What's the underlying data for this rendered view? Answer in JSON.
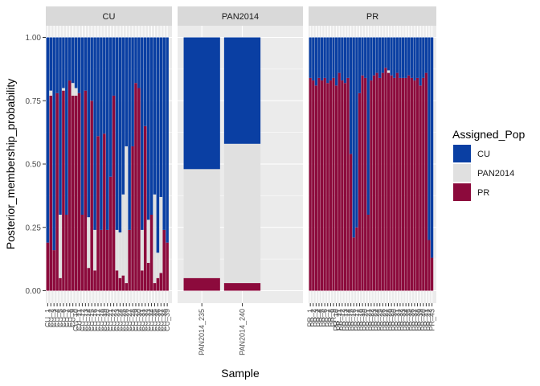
{
  "chart_data": {
    "type": "bar",
    "stacked": true,
    "xlabel": "Sample",
    "ylabel": "Posterior_membership_probability",
    "ylim": [
      0,
      1
    ],
    "yticks": [
      "0.00",
      "0.25",
      "0.50",
      "0.75",
      "1.00"
    ],
    "legend": {
      "title": "Assigned_Pop",
      "placement": "right",
      "entries": [
        {
          "label": "CU",
          "color": "#0a3fa3"
        },
        {
          "label": "PAN2014",
          "color": "#e0e0e0"
        },
        {
          "label": "PR",
          "color": "#8c0a3c"
        }
      ]
    },
    "series_order": [
      "PR",
      "PAN2014",
      "CU"
    ],
    "panels": [
      {
        "name": "CU",
        "samples": [
          {
            "id": "s1",
            "PR": 0.19,
            "PAN2014": 0.0,
            "CU": 0.81
          },
          {
            "id": "s2",
            "PR": 0.77,
            "PAN2014": 0.02,
            "CU": 0.21
          },
          {
            "id": "s3",
            "PR": 0.16,
            "PAN2014": 0.0,
            "CU": 0.84
          },
          {
            "id": "s4",
            "PR": 0.78,
            "PAN2014": 0.0,
            "CU": 0.22
          },
          {
            "id": "s5",
            "PR": 0.05,
            "PAN2014": 0.25,
            "CU": 0.7
          },
          {
            "id": "s6",
            "PR": 0.79,
            "PAN2014": 0.01,
            "CU": 0.2
          },
          {
            "id": "s7",
            "PR": 0.3,
            "PAN2014": 0.0,
            "CU": 0.7
          },
          {
            "id": "s8",
            "PR": 0.83,
            "PAN2014": 0.0,
            "CU": 0.17
          },
          {
            "id": "s9",
            "PR": 0.77,
            "PAN2014": 0.05,
            "CU": 0.18
          },
          {
            "id": "s10",
            "PR": 0.77,
            "PAN2014": 0.03,
            "CU": 0.2
          },
          {
            "id": "s11",
            "PR": 0.78,
            "PAN2014": 0.0,
            "CU": 0.22
          },
          {
            "id": "s12",
            "PR": 0.3,
            "PAN2014": 0.0,
            "CU": 0.7
          },
          {
            "id": "s13",
            "PR": 0.79,
            "PAN2014": 0.0,
            "CU": 0.21
          },
          {
            "id": "s14",
            "PR": 0.09,
            "PAN2014": 0.2,
            "CU": 0.71
          },
          {
            "id": "s15",
            "PR": 0.75,
            "PAN2014": 0.0,
            "CU": 0.25
          },
          {
            "id": "s16",
            "PR": 0.08,
            "PAN2014": 0.16,
            "CU": 0.76
          },
          {
            "id": "s17",
            "PR": 0.61,
            "PAN2014": 0.0,
            "CU": 0.39
          },
          {
            "id": "s18",
            "PR": 0.24,
            "PAN2014": 0.0,
            "CU": 0.76
          },
          {
            "id": "s19",
            "PR": 0.62,
            "PAN2014": 0.0,
            "CU": 0.38
          },
          {
            "id": "s20",
            "PR": 0.24,
            "PAN2014": 0.0,
            "CU": 0.76
          },
          {
            "id": "s21",
            "PR": 0.45,
            "PAN2014": 0.0,
            "CU": 0.55
          },
          {
            "id": "s22",
            "PR": 0.77,
            "PAN2014": 0.0,
            "CU": 0.23
          },
          {
            "id": "s23",
            "PR": 0.08,
            "PAN2014": 0.16,
            "CU": 0.76
          },
          {
            "id": "s24",
            "PR": 0.05,
            "PAN2014": 0.18,
            "CU": 0.77
          },
          {
            "id": "s25",
            "PR": 0.06,
            "PAN2014": 0.32,
            "CU": 0.62
          },
          {
            "id": "s26",
            "PR": 0.03,
            "PAN2014": 0.54,
            "CU": 0.43
          },
          {
            "id": "s27",
            "PR": 0.24,
            "PAN2014": 0.0,
            "CU": 0.76
          },
          {
            "id": "s28",
            "PR": 0.57,
            "PAN2014": 0.0,
            "CU": 0.43
          },
          {
            "id": "s29",
            "PR": 0.82,
            "PAN2014": 0.0,
            "CU": 0.18
          },
          {
            "id": "s30",
            "PR": 0.8,
            "PAN2014": 0.0,
            "CU": 0.2
          },
          {
            "id": "s31",
            "PR": 0.08,
            "PAN2014": 0.16,
            "CU": 0.76
          },
          {
            "id": "s32",
            "PR": 0.65,
            "PAN2014": 0.0,
            "CU": 0.35
          },
          {
            "id": "s33",
            "PR": 0.11,
            "PAN2014": 0.17,
            "CU": 0.72
          },
          {
            "id": "s34",
            "PR": 0.3,
            "PAN2014": 0.0,
            "CU": 0.7
          },
          {
            "id": "s35",
            "PR": 0.03,
            "PAN2014": 0.35,
            "CU": 0.62
          },
          {
            "id": "s36",
            "PR": 0.05,
            "PAN2014": 0.1,
            "CU": 0.85
          },
          {
            "id": "s37",
            "PR": 0.07,
            "PAN2014": 0.3,
            "CU": 0.63
          },
          {
            "id": "s38",
            "PR": 0.24,
            "PAN2014": 0.0,
            "CU": 0.76
          },
          {
            "id": "s39",
            "PR": 0.19,
            "PAN2014": 0.0,
            "CU": 0.81
          }
        ],
        "tick_labels": [
          "CU_1",
          "CU_2",
          "CU_3",
          "CU_4",
          "CU_5",
          "CU_6",
          "CU_7",
          "CU_8",
          "CU_9",
          "CU_10",
          "CU_11",
          "CU_12",
          "CU_13",
          "CU_14",
          "CU_15",
          "CU_16",
          "CU_17",
          "CU_18",
          "CU_19",
          "CU_20",
          "CU_21",
          "CU_22",
          "CU_23",
          "CU_24",
          "CU_25",
          "CU_26",
          "CU_27",
          "CU_28",
          "CU_29",
          "CU_30",
          "CU_31",
          "CU_32",
          "CU_33",
          "CU_34",
          "CU_35",
          "CU_36",
          "CU_37",
          "CU_38",
          "CU_39"
        ]
      },
      {
        "name": "PAN2014",
        "samples": [
          {
            "id": "PAN2014_235",
            "PR": 0.05,
            "PAN2014": 0.43,
            "CU": 0.52
          },
          {
            "id": "PAN2014_240",
            "PR": 0.03,
            "PAN2014": 0.55,
            "CU": 0.42
          }
        ],
        "tick_labels": [
          "PAN2014_235",
          "PAN2014_240"
        ]
      },
      {
        "name": "PR",
        "samples": [
          {
            "id": "r1",
            "PR": 0.84,
            "PAN2014": 0.0,
            "CU": 0.16
          },
          {
            "id": "r2",
            "PR": 0.83,
            "PAN2014": 0.0,
            "CU": 0.17
          },
          {
            "id": "r3",
            "PR": 0.81,
            "PAN2014": 0.0,
            "CU": 0.19
          },
          {
            "id": "r4",
            "PR": 0.84,
            "PAN2014": 0.0,
            "CU": 0.16
          },
          {
            "id": "r5",
            "PR": 0.83,
            "PAN2014": 0.0,
            "CU": 0.17
          },
          {
            "id": "r6",
            "PR": 0.84,
            "PAN2014": 0.0,
            "CU": 0.16
          },
          {
            "id": "r7",
            "PR": 0.82,
            "PAN2014": 0.0,
            "CU": 0.18
          },
          {
            "id": "r8",
            "PR": 0.83,
            "PAN2014": 0.0,
            "CU": 0.17
          },
          {
            "id": "r9",
            "PR": 0.84,
            "PAN2014": 0.0,
            "CU": 0.16
          },
          {
            "id": "r10",
            "PR": 0.81,
            "PAN2014": 0.0,
            "CU": 0.19
          },
          {
            "id": "r11",
            "PR": 0.86,
            "PAN2014": 0.0,
            "CU": 0.14
          },
          {
            "id": "r12",
            "PR": 0.83,
            "PAN2014": 0.0,
            "CU": 0.17
          },
          {
            "id": "r13",
            "PR": 0.82,
            "PAN2014": 0.0,
            "CU": 0.18
          },
          {
            "id": "r14",
            "PR": 0.84,
            "PAN2014": 0.0,
            "CU": 0.16
          },
          {
            "id": "r15",
            "PR": 0.54,
            "PAN2014": 0.0,
            "CU": 0.46
          },
          {
            "id": "r16",
            "PR": 0.21,
            "PAN2014": 0.0,
            "CU": 0.79
          },
          {
            "id": "r17",
            "PR": 0.25,
            "PAN2014": 0.0,
            "CU": 0.75
          },
          {
            "id": "r18",
            "PR": 0.78,
            "PAN2014": 0.0,
            "CU": 0.22
          },
          {
            "id": "r19",
            "PR": 0.85,
            "PAN2014": 0.0,
            "CU": 0.15
          },
          {
            "id": "r20",
            "PR": 0.84,
            "PAN2014": 0.0,
            "CU": 0.16
          },
          {
            "id": "r21",
            "PR": 0.3,
            "PAN2014": 0.0,
            "CU": 0.7
          },
          {
            "id": "r22",
            "PR": 0.83,
            "PAN2014": 0.0,
            "CU": 0.17
          },
          {
            "id": "r23",
            "PR": 0.85,
            "PAN2014": 0.0,
            "CU": 0.15
          },
          {
            "id": "r24",
            "PR": 0.86,
            "PAN2014": 0.0,
            "CU": 0.14
          },
          {
            "id": "r25",
            "PR": 0.84,
            "PAN2014": 0.0,
            "CU": 0.16
          },
          {
            "id": "r26",
            "PR": 0.86,
            "PAN2014": 0.0,
            "CU": 0.14
          },
          {
            "id": "r27",
            "PR": 0.88,
            "PAN2014": 0.0,
            "CU": 0.12
          },
          {
            "id": "r28",
            "PR": 0.86,
            "PAN2014": 0.01,
            "CU": 0.13
          },
          {
            "id": "r29",
            "PR": 0.85,
            "PAN2014": 0.0,
            "CU": 0.15
          },
          {
            "id": "r30",
            "PR": 0.84,
            "PAN2014": 0.0,
            "CU": 0.16
          },
          {
            "id": "r31",
            "PR": 0.86,
            "PAN2014": 0.0,
            "CU": 0.14
          },
          {
            "id": "r32",
            "PR": 0.84,
            "PAN2014": 0.0,
            "CU": 0.16
          },
          {
            "id": "r33",
            "PR": 0.84,
            "PAN2014": 0.0,
            "CU": 0.16
          },
          {
            "id": "r34",
            "PR": 0.84,
            "PAN2014": 0.0,
            "CU": 0.16
          },
          {
            "id": "r35",
            "PR": 0.85,
            "PAN2014": 0.0,
            "CU": 0.15
          },
          {
            "id": "r36",
            "PR": 0.84,
            "PAN2014": 0.0,
            "CU": 0.16
          },
          {
            "id": "r37",
            "PR": 0.83,
            "PAN2014": 0.0,
            "CU": 0.17
          },
          {
            "id": "r38",
            "PR": 0.84,
            "PAN2014": 0.0,
            "CU": 0.16
          },
          {
            "id": "r39",
            "PR": 0.81,
            "PAN2014": 0.0,
            "CU": 0.19
          },
          {
            "id": "r40",
            "PR": 0.84,
            "PAN2014": 0.0,
            "CU": 0.16
          },
          {
            "id": "r41",
            "PR": 0.86,
            "PAN2014": 0.0,
            "CU": 0.14
          },
          {
            "id": "r42",
            "PR": 0.2,
            "PAN2014": 0.0,
            "CU": 0.8
          },
          {
            "id": "r43",
            "PR": 0.13,
            "PAN2014": 0.0,
            "CU": 0.87
          }
        ],
        "tick_labels": [
          "PR_1",
          "PR_2",
          "PR_3",
          "PR_4",
          "PR_5",
          "PR_6",
          "PR_7",
          "PR_8",
          "PR_9",
          "PR_10",
          "PR_11",
          "PR_12",
          "PR_13",
          "PR_14",
          "PR_15",
          "PR_16",
          "PR_17",
          "PR_18",
          "PR_19",
          "PR_20",
          "PR_21",
          "PR_22",
          "PR_23",
          "PR_24",
          "PR_25",
          "PR_26",
          "PR_27",
          "PR_28",
          "PR_29",
          "PR_30",
          "PR_31",
          "PR_32",
          "PR_33",
          "PR_34",
          "PR_35",
          "PR_36",
          "PR_37",
          "PR_38",
          "PR_39",
          "PR_40",
          "PR_41",
          "PR_42",
          "PR_43"
        ]
      }
    ],
    "colors": {
      "panel_background": "#ebebeb",
      "gridline": "#ffffff",
      "strip_background": "#d9d9d9"
    }
  }
}
